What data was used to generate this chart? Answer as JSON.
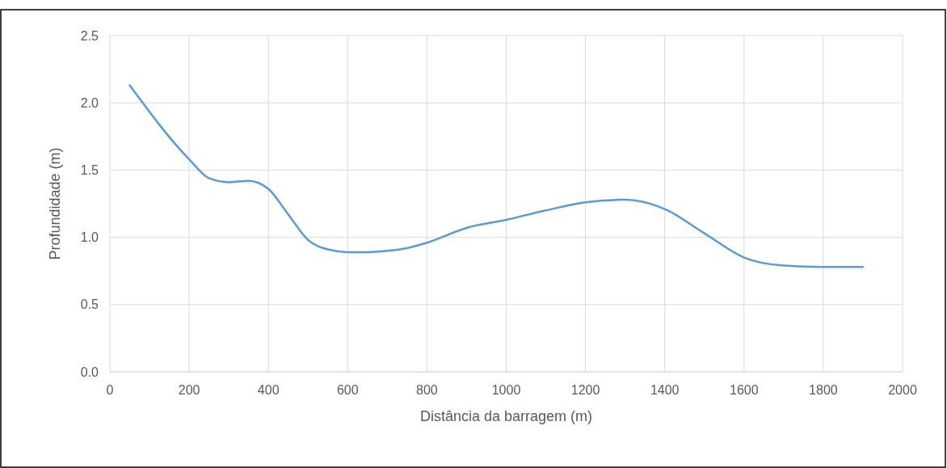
{
  "chart_data": {
    "type": "line",
    "xlabel": "Distância da barragem (m)",
    "ylabel": "Profundidade (m)",
    "x": [
      50,
      200,
      250,
      300,
      350,
      400,
      450,
      500,
      550,
      600,
      650,
      700,
      750,
      800,
      900,
      1000,
      1100,
      1200,
      1300,
      1400,
      1500,
      1600,
      1700,
      1800,
      1900
    ],
    "series": [
      {
        "color": "#5b9bd5",
        "values": [
          2.13,
          1.58,
          1.44,
          1.41,
          1.42,
          1.36,
          1.17,
          0.98,
          0.91,
          0.89,
          0.89,
          0.9,
          0.92,
          0.96,
          1.07,
          1.13,
          1.2,
          1.26,
          1.28,
          1.21,
          1.03,
          0.85,
          0.79,
          0.78,
          0.78
        ]
      }
    ],
    "xlim": [
      0,
      2000
    ],
    "xticks": [
      0,
      200,
      400,
      600,
      800,
      1000,
      1200,
      1400,
      1600,
      1800,
      2000
    ],
    "ylim": [
      0,
      2.5
    ],
    "yticks": [
      {
        "value": 0,
        "label": "0.0"
      },
      {
        "value": 0.5,
        "label": "0.5"
      },
      {
        "value": 1,
        "label": "1.0"
      },
      {
        "value": 1.5,
        "label": "1.5"
      },
      {
        "value": 2,
        "label": "2.0"
      },
      {
        "value": 2.5,
        "label": "2.5"
      }
    ],
    "grid": true,
    "marker": "none",
    "line_style": "solid"
  }
}
